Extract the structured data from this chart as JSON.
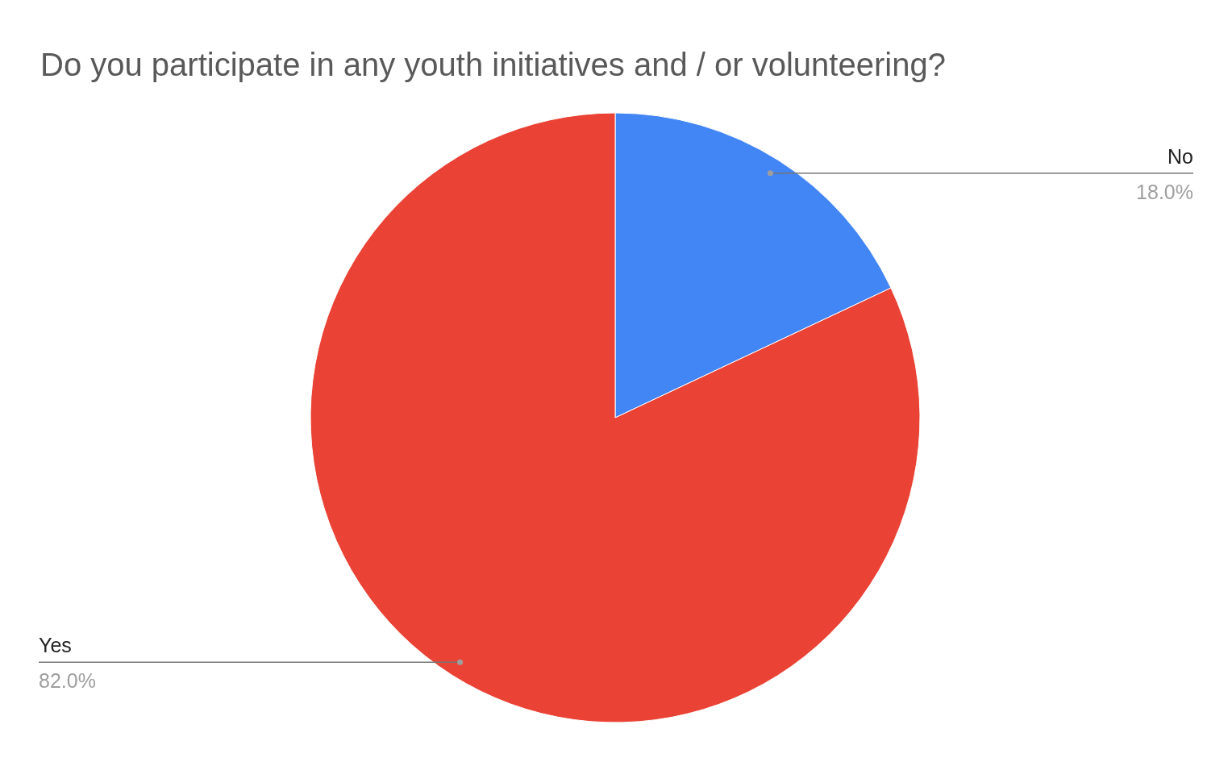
{
  "chart_data": {
    "type": "pie",
    "title": "Do you participate in any youth initiatives and / or volunteering?",
    "categories": [
      "No",
      "Yes"
    ],
    "values": [
      18,
      82
    ],
    "colors": [
      "#4285f4",
      "#ea4335"
    ],
    "value_labels": [
      "18.0%",
      "82.0%"
    ]
  }
}
